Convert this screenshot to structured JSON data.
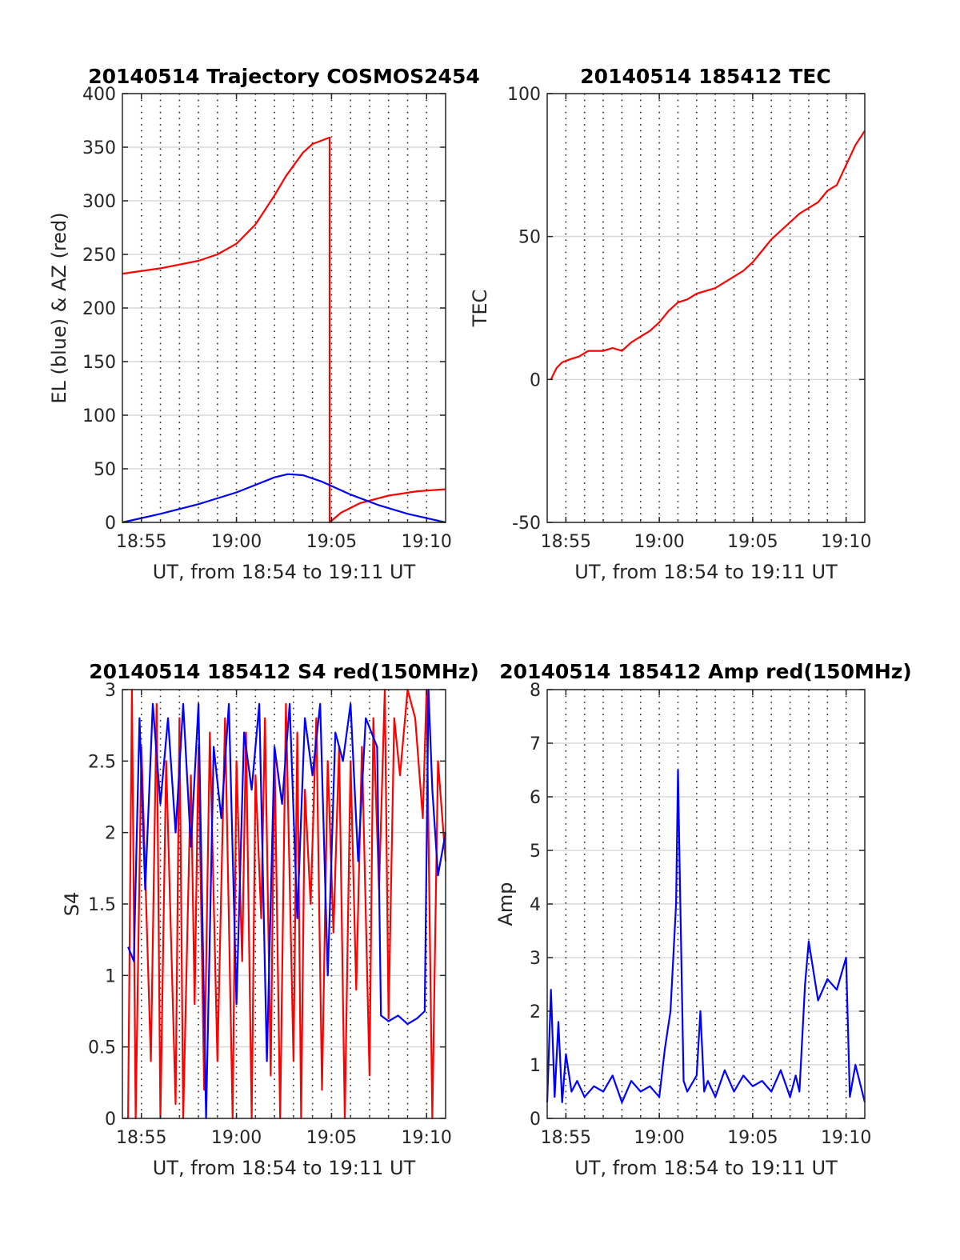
{
  "figure": {
    "xlabel": "UT, from 18:54 to 19:11 UT",
    "x_range_minutes_after_1854": [
      0,
      17
    ],
    "x_tick_labels": [
      "18:55",
      "19:00",
      "19:05",
      "19:10"
    ],
    "colors": {
      "red": "#ff0000",
      "blue": "#0000ff",
      "grid": "#d9d9d9",
      "axis": "#262626"
    }
  },
  "chart_data": [
    {
      "id": "trajectory",
      "type": "line",
      "title": "20140514 Trajectory COSMOS2454",
      "xlabel": "UT, from 18:54 to 19:11 UT",
      "ylabel": "EL (blue) & AZ (red)",
      "x_unit": "minutes after 18:54 UT",
      "xlim": [
        0,
        17
      ],
      "ylim": [
        0,
        400
      ],
      "yticks": [
        0,
        50,
        100,
        150,
        200,
        250,
        300,
        350,
        400
      ],
      "grid": "minor-x dotted, major-y",
      "series": [
        {
          "name": "AZ",
          "color": "#ff0000",
          "x": [
            0,
            2,
            4,
            5,
            6,
            7,
            8,
            8.6,
            9.5,
            10,
            10.9,
            10.9,
            11.5,
            12.5,
            14,
            15.5,
            17
          ],
          "y": [
            232,
            237,
            244,
            250,
            260,
            278,
            305,
            323,
            345,
            353,
            359,
            0,
            9,
            18,
            25,
            29,
            31
          ]
        },
        {
          "name": "EL",
          "color": "#0000ff",
          "x": [
            0,
            2,
            4,
            6,
            7,
            8,
            8.7,
            9.5,
            10.5,
            12,
            13.5,
            15,
            16.5,
            17
          ],
          "y": [
            0,
            8,
            17,
            28,
            35,
            42,
            45,
            44,
            38,
            26,
            16,
            8,
            2,
            0
          ]
        }
      ]
    },
    {
      "id": "tec",
      "type": "line",
      "title": "20140514 185412 TEC",
      "xlabel": "UT, from 18:54 to 19:11 UT",
      "ylabel": "TEC",
      "x_unit": "minutes after 18:54 UT",
      "xlim": [
        0,
        17
      ],
      "ylim": [
        -50,
        100
      ],
      "yticks": [
        -50,
        0,
        50,
        100
      ],
      "grid": "minor-x dotted, major-y",
      "series": [
        {
          "name": "TEC",
          "color": "#ff0000",
          "x": [
            0.2,
            0.5,
            0.8,
            1.2,
            1.7,
            2.2,
            3,
            3.5,
            4,
            4.5,
            5,
            5.5,
            6,
            6.5,
            7,
            7.5,
            8,
            8.5,
            9,
            9.5,
            10,
            10.5,
            11,
            11.5,
            12,
            12.5,
            13,
            13.5,
            14,
            14.5,
            15,
            15.5,
            16,
            16.5,
            17
          ],
          "y": [
            0,
            4,
            6,
            7,
            8,
            10,
            10,
            11,
            10,
            13,
            15,
            17,
            20,
            24,
            27,
            28,
            30,
            31,
            32,
            34,
            36,
            38,
            41,
            45,
            49,
            52,
            55,
            58,
            60,
            62,
            66,
            68,
            75,
            82,
            87
          ]
        }
      ]
    },
    {
      "id": "s4",
      "type": "line",
      "title": "20140514 185412 S4 red(150MHz)",
      "xlabel": "UT, from 18:54 to 19:11 UT",
      "ylabel": "S4",
      "x_unit": "minutes after 18:54 UT",
      "xlim": [
        0,
        17
      ],
      "ylim": [
        0,
        3
      ],
      "yticks": [
        0,
        0.5,
        1,
        1.5,
        2,
        2.5,
        3
      ],
      "grid": "minor-x dotted, major-y",
      "series": [
        {
          "name": "red",
          "color": "#ff0000",
          "x": [
            0.3,
            0.5,
            0.7,
            1.0,
            1.5,
            1.8,
            2.0,
            2.3,
            2.8,
            3.0,
            3.2,
            3.6,
            3.8,
            4.0,
            4.3,
            4.6,
            5.0,
            5.4,
            5.8,
            6.0,
            6.3,
            6.5,
            6.8,
            7.0,
            7.3,
            7.5,
            7.8,
            8.0,
            8.3,
            8.6,
            9.0,
            9.2,
            9.4,
            9.6,
            9.9,
            10.2,
            10.5,
            10.8,
            11.1,
            11.4,
            11.7,
            12.0,
            12.3,
            12.6,
            13.0,
            13.2,
            13.5,
            13.8,
            14.0,
            14.3,
            14.6,
            15.0,
            15.4,
            15.8,
            16.0,
            16.3,
            16.6,
            17.0
          ],
          "y": [
            0,
            3,
            0,
            2.6,
            0.4,
            2.9,
            0,
            2.5,
            0.1,
            2.8,
            0,
            2.4,
            0.8,
            2.6,
            0.2,
            2.7,
            0.4,
            2.8,
            0,
            2.5,
            1.1,
            2.7,
            0,
            2.4,
            1.4,
            2.8,
            0.3,
            2.6,
            0,
            2.9,
            0.4,
            2.7,
            0,
            2.3,
            1.5,
            2.8,
            0.2,
            2.5,
            1.3,
            2.6,
            0,
            2.5,
            0.9,
            2.6,
            0.3,
            2.8,
            1.6,
            3,
            0.7,
            2.8,
            2.4,
            3,
            2.8,
            2.1,
            3,
            0,
            2.5,
            1.8
          ]
        },
        {
          "name": "blue",
          "color": "#0000ff",
          "x": [
            0.3,
            0.6,
            0.9,
            1.2,
            1.6,
            2.0,
            2.4,
            2.8,
            3.2,
            3.6,
            4.0,
            4.4,
            4.8,
            5.2,
            5.6,
            6.0,
            6.4,
            6.8,
            7.2,
            7.6,
            8.0,
            8.4,
            8.8,
            9.2,
            9.6,
            10.0,
            10.4,
            10.8,
            11.2,
            11.6,
            12.0,
            12.4,
            12.8,
            13.4,
            13.6,
            14.0,
            14.5,
            15.0,
            15.5,
            15.9,
            16.1,
            16.3,
            16.6,
            17.0
          ],
          "y": [
            1.2,
            1.1,
            2.8,
            1.6,
            2.9,
            2.2,
            2.8,
            2.0,
            2.9,
            1.9,
            2.9,
            0,
            2.6,
            2.1,
            2.9,
            0.8,
            2.7,
            2.3,
            2.9,
            0.4,
            2.6,
            2.2,
            2.9,
            1.4,
            2.8,
            2.4,
            2.9,
            1.0,
            2.7,
            2.5,
            2.9,
            1.8,
            2.8,
            2.6,
            0.72,
            0.68,
            0.72,
            0.66,
            0.7,
            0.75,
            3,
            2.3,
            1.7,
            2.0
          ]
        }
      ]
    },
    {
      "id": "amp",
      "type": "line",
      "title": "20140514 185412 Amp red(150MHz)",
      "xlabel": "UT, from 18:54 to 19:11 UT",
      "ylabel": "Amp",
      "x_unit": "minutes after 18:54 UT",
      "xlim": [
        0,
        17
      ],
      "ylim": [
        0,
        8
      ],
      "yticks": [
        0,
        1,
        2,
        3,
        4,
        5,
        6,
        7,
        8
      ],
      "grid": "minor-x dotted, major-y",
      "series": [
        {
          "name": "blue",
          "color": "#0000ff",
          "x": [
            0.0,
            0.2,
            0.4,
            0.6,
            0.8,
            1.0,
            1.3,
            1.6,
            2.0,
            2.5,
            3.0,
            3.5,
            4.0,
            4.5,
            5.0,
            5.5,
            6.0,
            6.3,
            6.6,
            6.9,
            7.0,
            7.1,
            7.3,
            7.5,
            8.0,
            8.2,
            8.4,
            8.6,
            9.0,
            9.5,
            10.0,
            10.5,
            11.0,
            11.5,
            12.0,
            12.5,
            13.0,
            13.3,
            13.5,
            13.8,
            14.0,
            14.5,
            15.0,
            15.5,
            16.0,
            16.2,
            16.5,
            17.0
          ],
          "y": [
            0.3,
            2.4,
            0.4,
            1.8,
            0.3,
            1.2,
            0.5,
            0.7,
            0.4,
            0.6,
            0.5,
            0.8,
            0.3,
            0.7,
            0.5,
            0.6,
            0.4,
            1.3,
            2.0,
            4.0,
            6.5,
            4.5,
            0.7,
            0.5,
            0.8,
            2.0,
            0.5,
            0.7,
            0.4,
            0.9,
            0.5,
            0.8,
            0.6,
            0.7,
            0.5,
            0.9,
            0.4,
            0.8,
            0.5,
            2.5,
            3.3,
            2.2,
            2.6,
            2.4,
            3.0,
            0.4,
            1.0,
            0.3
          ]
        }
      ]
    }
  ]
}
